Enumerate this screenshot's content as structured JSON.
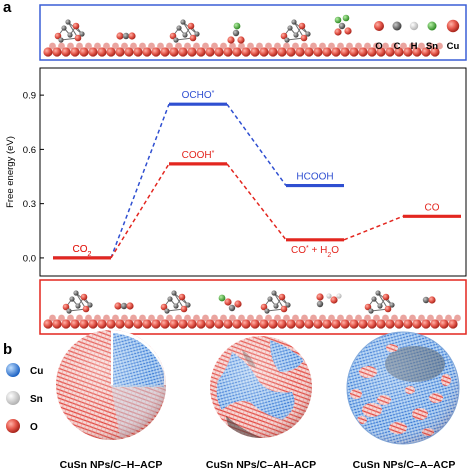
{
  "panel_a": {
    "letter": "a",
    "legend": {
      "items": [
        {
          "symbol": "O",
          "color": "#e8463c"
        },
        {
          "symbol": "C",
          "color": "#595959"
        },
        {
          "symbol": "H",
          "color": "#f2f2f2"
        },
        {
          "symbol": "Sn",
          "color": "#47a33a"
        },
        {
          "symbol": "Cu",
          "color": "#e0665a"
        }
      ]
    },
    "yaxis": {
      "label": "Free energy (eV)",
      "ticks": [
        "0.0",
        "0.3",
        "0.6",
        "0.9"
      ]
    }
  },
  "chart_data": {
    "type": "line",
    "ylabel": "Free energy (eV)",
    "ylim": [
      -0.1,
      1.05
    ],
    "xlabel": "",
    "series": [
      {
        "color": "#2f4fd1",
        "points": [
          {
            "step": 1,
            "label": "CO2",
            "y": 0.0
          },
          {
            "step": 2,
            "label": "OCHO*",
            "y": 0.85
          },
          {
            "step": 3,
            "label": "HCOOH",
            "y": 0.4
          }
        ]
      },
      {
        "color": "#e3261f",
        "points": [
          {
            "step": 1,
            "label": "CO2",
            "y": 0.0
          },
          {
            "step": 2,
            "label": "COOH*",
            "y": 0.52
          },
          {
            "step": 3,
            "label": "CO*+H2O",
            "y": 0.1
          },
          {
            "step": 4,
            "label": "CO",
            "y": 0.23
          }
        ]
      }
    ]
  },
  "panel_b": {
    "letter": "b",
    "legend": {
      "items": [
        {
          "symbol": "Cu",
          "color": "#3d8ee6"
        },
        {
          "symbol": "Sn",
          "color": "#d4d4d4"
        },
        {
          "symbol": "O",
          "color": "#e8302a"
        }
      ]
    },
    "captions": [
      "CuSn NPs/C–H–ACP",
      "CuSn NPs/C–AH–ACP",
      "CuSn NPs/C–A–ACP"
    ]
  }
}
